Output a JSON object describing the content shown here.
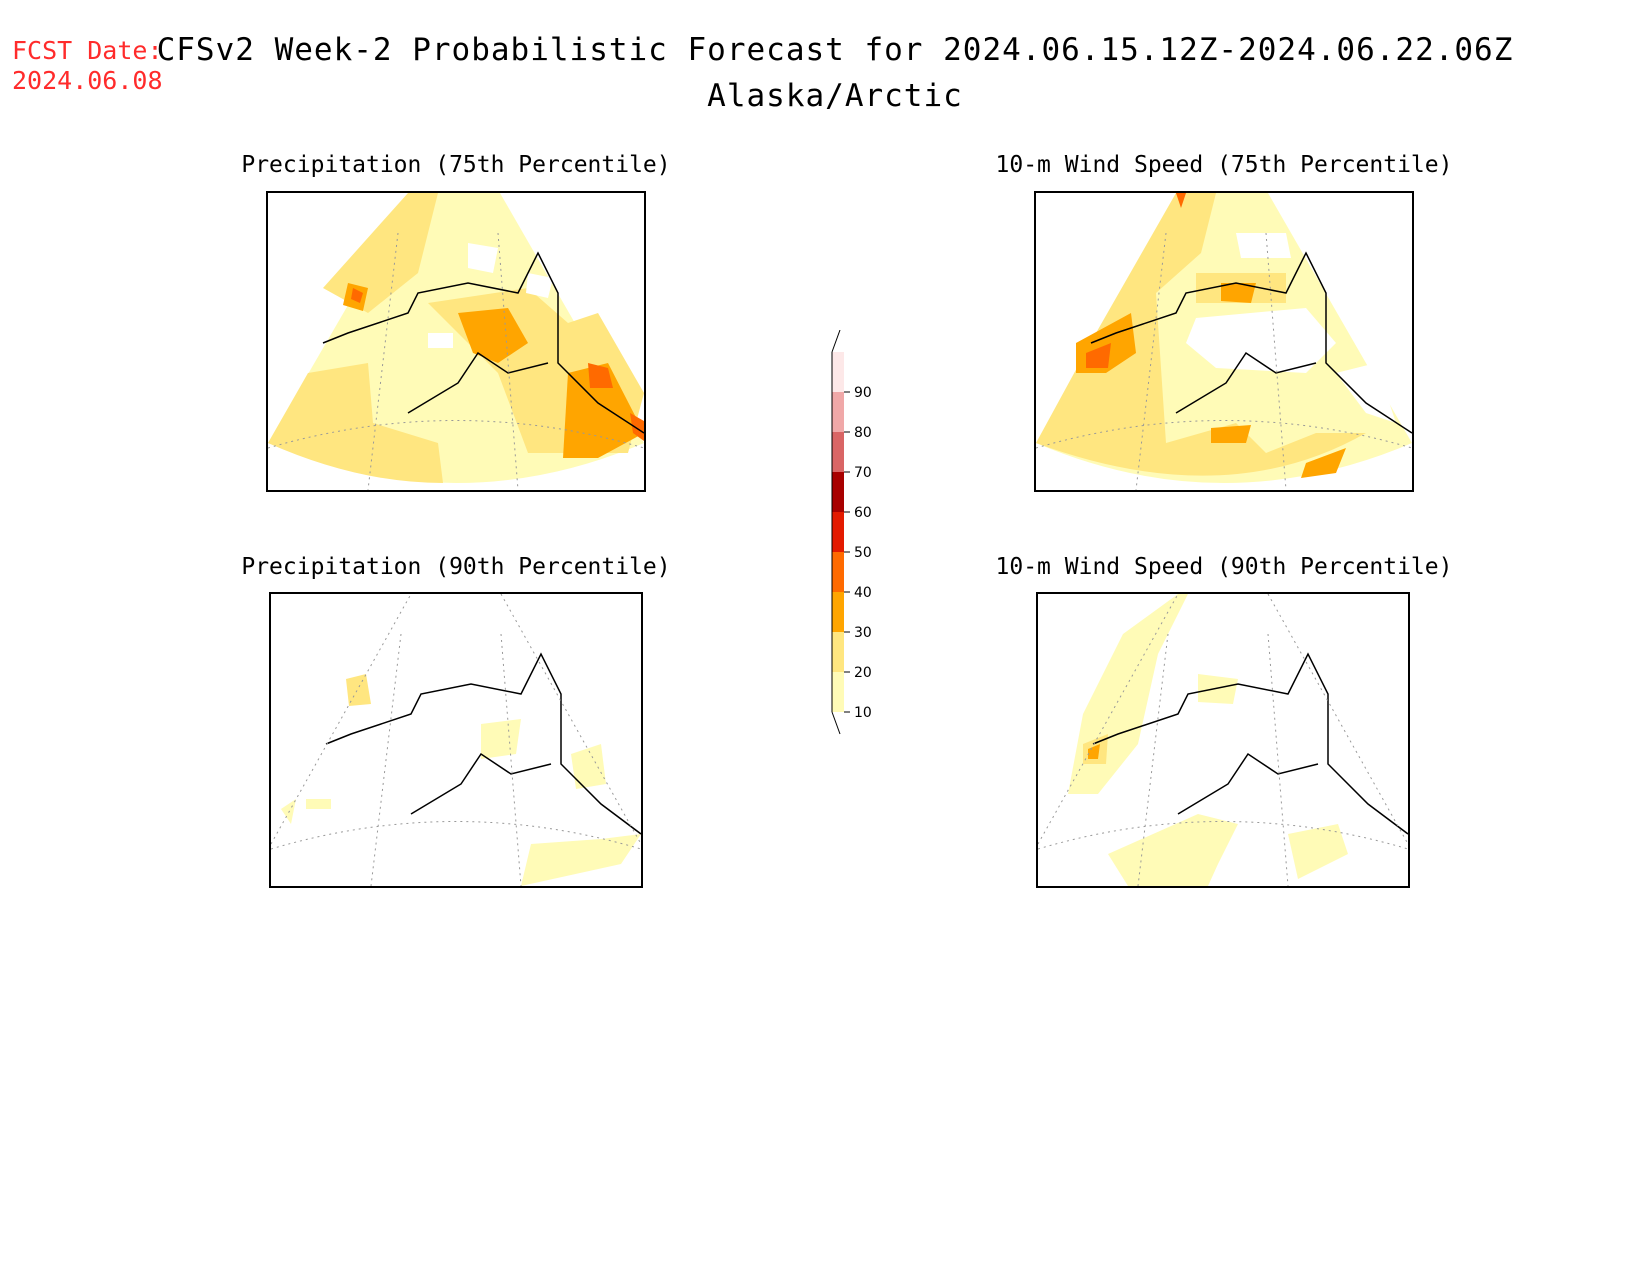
{
  "forecast_date": {
    "label": "FCST Date:",
    "value": "2024.06.08"
  },
  "title": "CFSv2 Week-2 Probabilistic Forecast for 2024.06.15.12Z-2024.06.22.06Z",
  "subtitle": "Alaska/Arctic",
  "panels": [
    {
      "title": "Precipitation (75th Percentile)"
    },
    {
      "title": "10-m Wind Speed (75th Percentile)"
    },
    {
      "title": "Precipitation (90th Percentile)"
    },
    {
      "title": "10-m Wind Speed (90th Percentile)"
    }
  ],
  "colorbar": {
    "levels": [
      10,
      20,
      30,
      40,
      50,
      60,
      70,
      80,
      90
    ],
    "labels": [
      "10",
      "20",
      "30",
      "40",
      "50",
      "60",
      "70",
      "80",
      "90"
    ],
    "colors": [
      "#fffbb7",
      "#ffe680",
      "#ffa500",
      "#ff6a00",
      "#e31a00",
      "#a80000",
      "#d96565",
      "#f0a8a8",
      "#fde8e8"
    ]
  }
}
